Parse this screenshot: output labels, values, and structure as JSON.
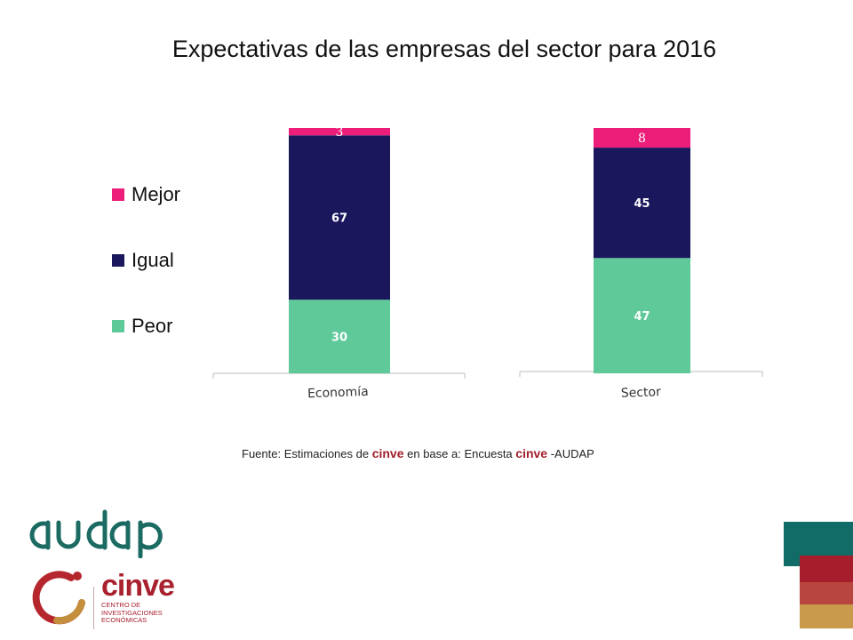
{
  "title": "Expectativas de las empresas del sector para 2016",
  "chart_data": {
    "type": "bar",
    "stacked": true,
    "categories": [
      "Economía",
      "Sector"
    ],
    "series": [
      {
        "name": "Peor",
        "values": [
          30,
          47
        ],
        "color": "#5fc99a"
      },
      {
        "name": "Igual",
        "values": [
          67,
          45
        ],
        "color": "#1a175c"
      },
      {
        "name": "Mejor",
        "values": [
          3,
          8
        ],
        "color": "#ec1e79"
      }
    ],
    "ylim": [
      0,
      100
    ],
    "legend_position": "left",
    "grid": false
  },
  "legend": [
    {
      "label": "Mejor",
      "color": "#ec1e79"
    },
    {
      "label": "Igual",
      "color": "#1a175c"
    },
    {
      "label": "Peor",
      "color": "#5fc99a"
    }
  ],
  "source": {
    "prefix": "Fuente: Estimaciones de ",
    "brand1": "cinve",
    "middle": " en base a: Encuesta ",
    "brand2": "cinve",
    "suffix": " -AUDAP"
  },
  "logos": {
    "audap": "audap",
    "cinve": "cinve",
    "cinve_subtitle": "Centro de Investigaciones Económicas"
  },
  "decoration_colors": [
    "#116b66",
    "#a61e2b",
    "#b8463f",
    "#c99a4c"
  ]
}
